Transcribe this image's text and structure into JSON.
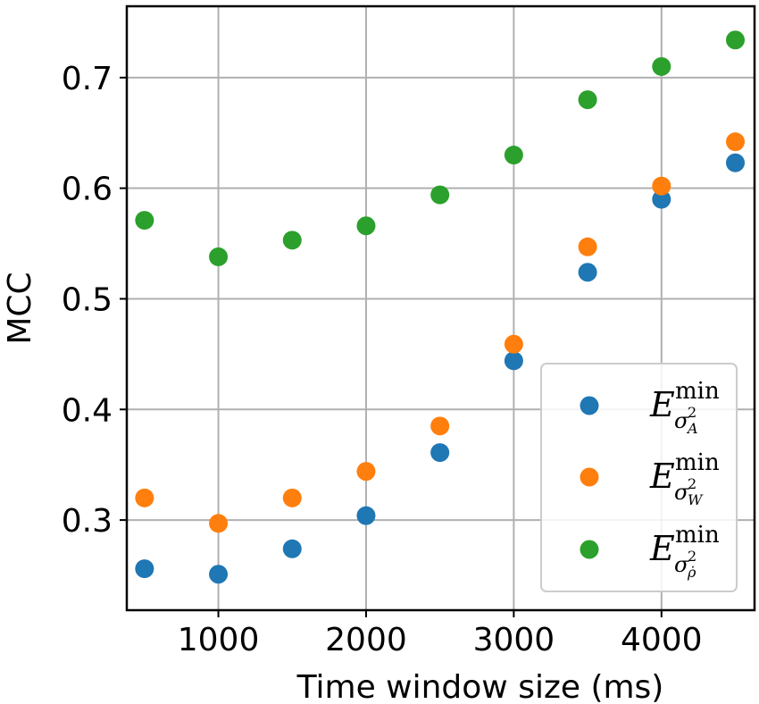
{
  "chart_data": {
    "type": "scatter",
    "xlabel": "Time window size (ms)",
    "ylabel": "MCC",
    "xlim": [
      380,
      4630
    ],
    "ylim": [
      0.2185,
      0.7645
    ],
    "xticks": [
      1000,
      2000,
      3000,
      4000
    ],
    "xtick_labels": [
      "1000",
      "2000",
      "3000",
      "4000"
    ],
    "yticks": [
      0.3,
      0.4,
      0.5,
      0.6,
      0.7
    ],
    "ytick_labels": [
      "0.3",
      "0.4",
      "0.5",
      "0.6",
      "0.7"
    ],
    "grid": true,
    "legend_position": "lower-right",
    "x": [
      500,
      1000,
      1500,
      2000,
      2500,
      3000,
      3500,
      4000,
      4500
    ],
    "series": [
      {
        "name": "E^{min}_{σ²_A}",
        "legend_base": "E",
        "legend_sup": "min",
        "legend_sub": "σ",
        "legend_sub_sup": "2",
        "legend_sub_sub": "A",
        "color": "#1f77b4",
        "values": [
          0.256,
          0.251,
          0.274,
          0.304,
          0.361,
          0.444,
          0.524,
          0.59,
          0.623
        ]
      },
      {
        "name": "E^{min}_{σ²_W}",
        "legend_base": "E",
        "legend_sup": "min",
        "legend_sub": "σ",
        "legend_sub_sup": "2",
        "legend_sub_sub": "W",
        "color": "#ff7f0e",
        "values": [
          0.32,
          0.297,
          0.32,
          0.344,
          0.385,
          0.459,
          0.547,
          0.602,
          0.642
        ]
      },
      {
        "name": "E^{min}_{σ²_ρ̇}",
        "legend_base": "E",
        "legend_sup": "min",
        "legend_sub": "σ",
        "legend_sub_sup": "2",
        "legend_sub_sub": "ρ̇",
        "color": "#2ca02c",
        "values": [
          0.571,
          0.538,
          0.553,
          0.566,
          0.594,
          0.63,
          0.68,
          0.71,
          0.734
        ]
      }
    ]
  }
}
